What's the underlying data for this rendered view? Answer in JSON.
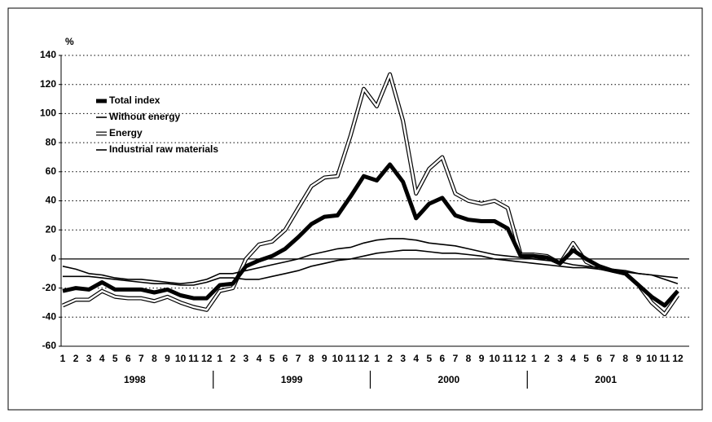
{
  "chart_data": {
    "type": "line",
    "y_label": "%",
    "categories": [
      "1",
      "2",
      "3",
      "4",
      "5",
      "6",
      "7",
      "8",
      "9",
      "10",
      "11",
      "12",
      "1",
      "2",
      "3",
      "4",
      "5",
      "6",
      "7",
      "8",
      "9",
      "10",
      "11",
      "12",
      "1",
      "2",
      "3",
      "4",
      "5",
      "6",
      "7",
      "8",
      "9",
      "10",
      "11",
      "12",
      "1",
      "2",
      "3",
      "4",
      "5",
      "6",
      "7",
      "8",
      "9",
      "10",
      "11",
      "12"
    ],
    "years": [
      "1998",
      "1999",
      "2000",
      "2001"
    ],
    "ylim": [
      -60,
      140
    ],
    "yticks": [
      -60,
      -40,
      -20,
      0,
      20,
      40,
      60,
      80,
      100,
      120,
      140
    ],
    "grid": true,
    "legend": "upper left",
    "series": [
      {
        "name": "Energy",
        "color": "#ffffff",
        "outline": "#000000",
        "width": 2.5,
        "values": [
          -32,
          -28,
          -28,
          -22,
          -26,
          -27,
          -27,
          -29,
          -26,
          -30,
          -33,
          -35,
          -22,
          -20,
          0,
          10,
          12,
          20,
          35,
          50,
          56,
          57,
          85,
          117,
          105,
          127,
          95,
          45,
          62,
          70,
          45,
          40,
          38,
          40,
          35,
          3,
          3,
          2,
          -3,
          11,
          -2,
          -6,
          -8,
          -10,
          -18,
          -30,
          -38,
          -25
        ]
      },
      {
        "name": "Without energy",
        "color": "#000000",
        "width": 1.6,
        "values": [
          -5,
          -7,
          -10,
          -11,
          -13,
          -14,
          -14,
          -15,
          -16,
          -17,
          -16,
          -14,
          -10,
          -10,
          -8,
          -6,
          -4,
          -2,
          0,
          3,
          5,
          7,
          8,
          11,
          13,
          14,
          14,
          13,
          11,
          10,
          9,
          7,
          5,
          3,
          2,
          1,
          0,
          -1,
          -2,
          -4,
          -5,
          -6,
          -7,
          -8,
          -10,
          -11,
          -12,
          -13
        ]
      },
      {
        "name": "Industrial raw materials",
        "color": "#000000",
        "width": 1.6,
        "values": [
          -12,
          -12,
          -12,
          -13,
          -14,
          -15,
          -16,
          -17,
          -17,
          -18,
          -18,
          -16,
          -13,
          -13,
          -14,
          -14,
          -12,
          -10,
          -8,
          -5,
          -3,
          -1,
          0,
          2,
          4,
          5,
          6,
          6,
          5,
          4,
          4,
          3,
          2,
          0,
          -1,
          -2,
          -3,
          -4,
          -5,
          -6,
          -6,
          -7,
          -8,
          -9,
          -10,
          -11,
          -14,
          -17
        ]
      },
      {
        "name": "Total index",
        "color": "#000000",
        "width": 5,
        "values": [
          -22,
          -20,
          -21,
          -16,
          -21,
          -21,
          -21,
          -23,
          -21,
          -25,
          -27,
          -27,
          -18,
          -17,
          -5,
          -1,
          2,
          7,
          15,
          24,
          29,
          30,
          43,
          57,
          54,
          65,
          53,
          28,
          38,
          42,
          30,
          27,
          26,
          26,
          21,
          2,
          2,
          1,
          -3,
          6,
          0,
          -5,
          -8,
          -10,
          -18,
          -26,
          -32,
          -22
        ]
      }
    ],
    "legend_order": [
      3,
      1,
      0,
      2
    ]
  }
}
